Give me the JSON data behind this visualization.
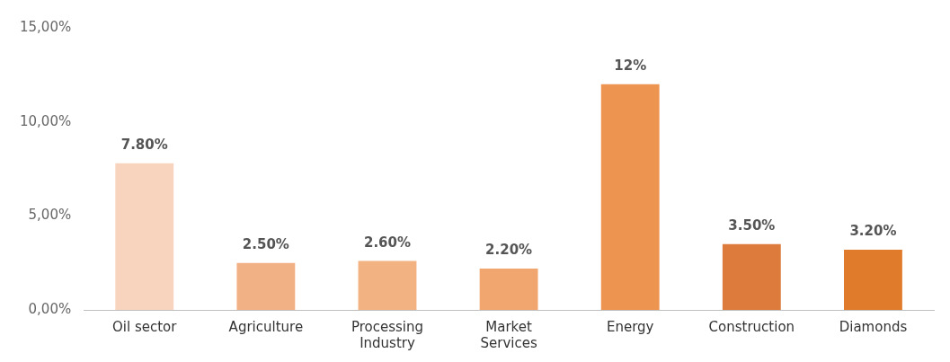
{
  "chart_data": {
    "type": "bar",
    "categories": [
      "Oil sector",
      "Agriculture",
      "Processing Industry",
      "Market  Services",
      "Energy",
      "Construction",
      "Diamonds"
    ],
    "values": [
      7.8,
      2.5,
      2.6,
      2.2,
      12,
      3.5,
      3.2
    ],
    "colors": [
      "#f8d3bd",
      "#f2b185",
      "#f3b282",
      "#f1a56f",
      "#ec9450",
      "#dc7b3c",
      "#e07b2b"
    ],
    "value_labels": [
      "7.80%",
      "2.50%",
      "2.60%",
      "2.20%",
      "12%",
      "3.50%",
      "3.20%"
    ],
    "ylim": [
      0,
      15
    ],
    "yticks": [
      {
        "value": 0,
        "label": "0,00%"
      },
      {
        "value": 5,
        "label": "5,00%"
      },
      {
        "value": 10,
        "label": "10,00%"
      },
      {
        "value": 15,
        "label": "15,00%"
      }
    ],
    "grid": false,
    "legend": false
  }
}
